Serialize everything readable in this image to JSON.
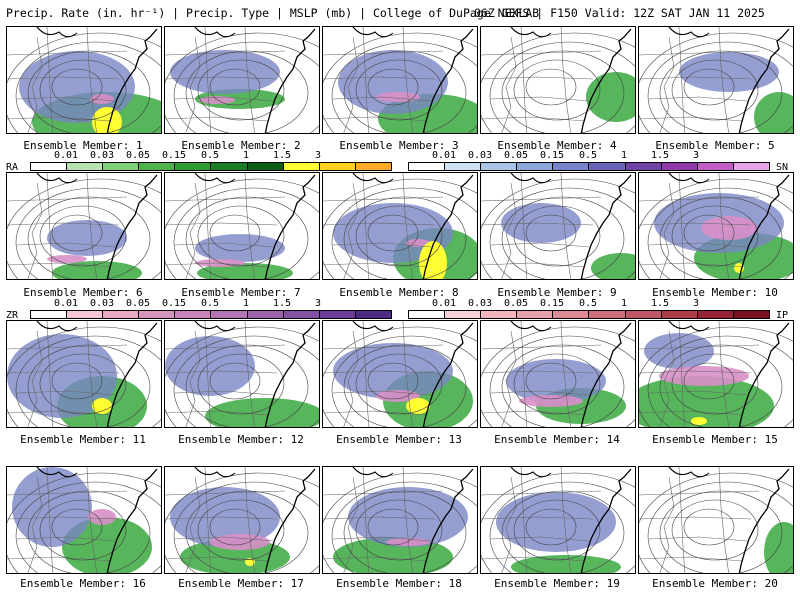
{
  "header": {
    "left": "Precip. Rate (in. hr⁻¹) | Precip. Type | MSLP (mb) | College of DuPage NEXLAB",
    "right": "06Z GEFS | F150 Valid: 12Z SAT JAN 11 2025"
  },
  "members": [
    {
      "label": "Ensemble Member: 1"
    },
    {
      "label": "Ensemble Member: 2"
    },
    {
      "label": "Ensemble Member: 3"
    },
    {
      "label": "Ensemble Member: 4"
    },
    {
      "label": "Ensemble Member: 5"
    },
    {
      "label": "Ensemble Member: 6"
    },
    {
      "label": "Ensemble Member: 7"
    },
    {
      "label": "Ensemble Member: 8"
    },
    {
      "label": "Ensemble Member: 9"
    },
    {
      "label": "Ensemble Member: 10"
    },
    {
      "label": "Ensemble Member: 11"
    },
    {
      "label": "Ensemble Member: 12"
    },
    {
      "label": "Ensemble Member: 13"
    },
    {
      "label": "Ensemble Member: 14"
    },
    {
      "label": "Ensemble Member: 15"
    },
    {
      "label": "Ensemble Member: 16"
    },
    {
      "label": "Ensemble Member: 17"
    },
    {
      "label": "Ensemble Member: 18"
    },
    {
      "label": "Ensemble Member: 19"
    },
    {
      "label": "Ensemble Member: 20"
    }
  ],
  "legends": {
    "rain": {
      "tag": "RA",
      "ticks": [
        "0.01",
        "0.03",
        "0.05",
        "0.15",
        "0.5",
        "1",
        "1.5",
        "3"
      ],
      "colors": [
        "#ffffff",
        "#b7e3b0",
        "#7fcf77",
        "#4fb34b",
        "#2e9a32",
        "#1d7d24",
        "#0e5c17",
        "#ffff33",
        "#ffd21f",
        "#ffab2a"
      ]
    },
    "snow": {
      "tag": "SN",
      "ticks": [
        "0.01",
        "0.03",
        "0.05",
        "0.15",
        "0.5",
        "1",
        "1.5",
        "3"
      ],
      "colors": [
        "#ffffff",
        "#cfe2f3",
        "#a9c6e6",
        "#8aa8db",
        "#7683c9",
        "#6a62b6",
        "#7043a7",
        "#8f3aa8",
        "#c45ec7",
        "#e6a6e8"
      ]
    },
    "freezing_rain": {
      "tag": "ZR",
      "ticks": [
        "0.01",
        "0.03",
        "0.05",
        "0.15",
        "0.5",
        "1",
        "1.5",
        "3"
      ],
      "colors": [
        "#ffffff",
        "#f4c6d8",
        "#e8a8c4",
        "#d996bd",
        "#c985bb",
        "#b375b3",
        "#9c63ab",
        "#8451a3",
        "#6b3d96",
        "#4f2a85"
      ]
    },
    "ice_pellets": {
      "tag": "IP",
      "ticks": [
        "0.01",
        "0.03",
        "0.05",
        "0.15",
        "0.5",
        "1",
        "1.5",
        "3"
      ],
      "colors": [
        "#ffffff",
        "#f7cfd6",
        "#f1b5bf",
        "#e8a1ac",
        "#dc8a96",
        "#cf6f7e",
        "#c05766",
        "#ad3c4b",
        "#962234",
        "#7a0f1f"
      ]
    }
  }
}
